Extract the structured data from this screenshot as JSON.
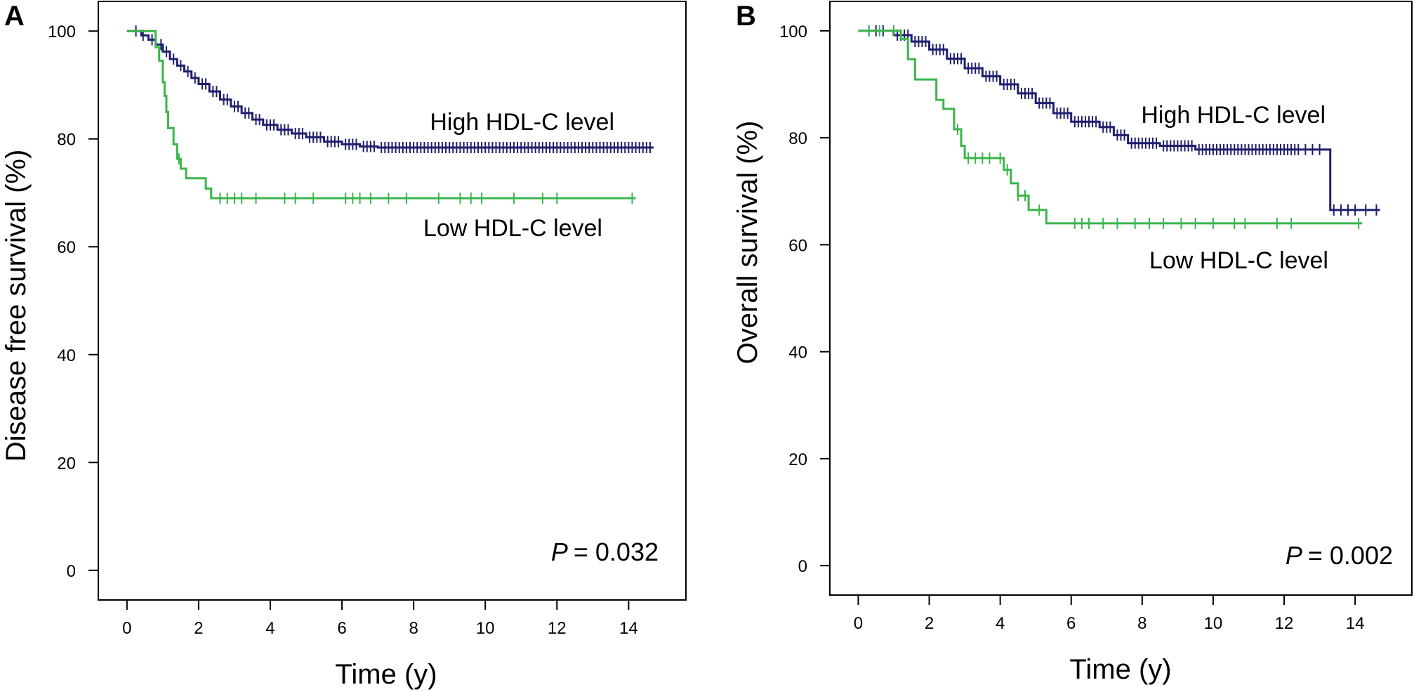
{
  "chart_data": [
    {
      "type": "line",
      "panel_label": "A",
      "xlabel": "Time (y)",
      "ylabel": "Disease free survival (%)",
      "xlim": [
        -0.8,
        15.6
      ],
      "ylim": [
        -5.5,
        105.5
      ],
      "xticks": [
        0,
        2,
        4,
        6,
        8,
        10,
        12,
        14
      ],
      "yticks": [
        0,
        20,
        40,
        60,
        80,
        100
      ],
      "p_prefix": "P",
      "p_value": "= 0.032",
      "series": [
        {
          "name": "High HDL-C level",
          "color": "#1f1f6e",
          "steps": [
            [
              0,
              100
            ],
            [
              0.4,
              99.2
            ],
            [
              0.6,
              98.4
            ],
            [
              0.8,
              97.5
            ],
            [
              1.0,
              96.2
            ],
            [
              1.2,
              94.8
            ],
            [
              1.4,
              93.6
            ],
            [
              1.6,
              92.5
            ],
            [
              1.8,
              91.3
            ],
            [
              2.0,
              90.2
            ],
            [
              2.3,
              88.8
            ],
            [
              2.6,
              87.3
            ],
            [
              2.9,
              86.0
            ],
            [
              3.2,
              84.8
            ],
            [
              3.5,
              83.6
            ],
            [
              3.8,
              82.6
            ],
            [
              4.2,
              81.7
            ],
            [
              4.6,
              81.0
            ],
            [
              5.0,
              80.3
            ],
            [
              5.5,
              79.5
            ],
            [
              6.0,
              79.0
            ],
            [
              6.5,
              78.6
            ],
            [
              7.0,
              78.4
            ]
          ],
          "end": 14.7,
          "censor": [
            0.25,
            0.45,
            0.7,
            0.95,
            1.1,
            1.3,
            1.5,
            1.7,
            1.9,
            2.1,
            2.2,
            2.4,
            2.5,
            2.7,
            2.8,
            3.0,
            3.1,
            3.3,
            3.4,
            3.6,
            3.7,
            3.9,
            4.0,
            4.1,
            4.3,
            4.4,
            4.5,
            4.7,
            4.8,
            4.9,
            5.1,
            5.2,
            5.3,
            5.4,
            5.6,
            5.7,
            5.8,
            5.9,
            6.1,
            6.2,
            6.3,
            6.4,
            6.6,
            6.7,
            6.8,
            6.9,
            7.1,
            7.2,
            7.3,
            7.4,
            7.5,
            7.6,
            7.7,
            7.8,
            7.9,
            8.0,
            8.1,
            8.2,
            8.3,
            8.4,
            8.5,
            8.6,
            8.7,
            8.8,
            8.9,
            9.0,
            9.1,
            9.2,
            9.3,
            9.4,
            9.5,
            9.6,
            9.7,
            9.8,
            9.9,
            10.0,
            10.1,
            10.2,
            10.3,
            10.4,
            10.5,
            10.6,
            10.7,
            10.8,
            10.9,
            11.0,
            11.1,
            11.2,
            11.3,
            11.4,
            11.5,
            11.6,
            11.7,
            11.8,
            11.9,
            12.0,
            12.1,
            12.2,
            12.3,
            12.4,
            12.5,
            12.6,
            12.7,
            12.8,
            12.9,
            13.0,
            13.1,
            13.2,
            13.3,
            13.4,
            13.5,
            13.6,
            13.7,
            13.8,
            13.9,
            14.0,
            14.1,
            14.2,
            14.3,
            14.4,
            14.5,
            14.6
          ]
        },
        {
          "name": "Low HDL-C level",
          "color": "#3bb54a",
          "steps": [
            [
              0,
              100
            ],
            [
              0.6,
              100
            ],
            [
              0.8,
              97.0
            ],
            [
              0.9,
              94.5
            ],
            [
              1.0,
              90.5
            ],
            [
              1.05,
              88.0
            ],
            [
              1.1,
              85.0
            ],
            [
              1.15,
              82.0
            ],
            [
              1.3,
              81.7
            ],
            [
              1.3,
              79.0
            ],
            [
              1.4,
              76.3
            ],
            [
              1.5,
              74.5
            ],
            [
              1.65,
              72.7
            ],
            [
              2.2,
              70.8
            ],
            [
              2.35,
              69.0
            ]
          ],
          "end": 14.2,
          "censor": [
            1.45,
            2.6,
            2.8,
            3.0,
            3.2,
            3.6,
            4.4,
            4.7,
            5.2,
            6.1,
            6.3,
            6.5,
            6.8,
            7.3,
            7.8,
            8.7,
            9.3,
            9.6,
            9.9,
            10.8,
            11.6,
            12.0,
            14.1
          ]
        }
      ]
    },
    {
      "type": "line",
      "panel_label": "B",
      "xlabel": "Time (y)",
      "ylabel": "Overall survival (%)",
      "xlim": [
        -0.8,
        15.6
      ],
      "ylim": [
        -5.5,
        105.5
      ],
      "xticks": [
        0,
        2,
        4,
        6,
        8,
        10,
        12,
        14
      ],
      "yticks": [
        0,
        20,
        40,
        60,
        80,
        100
      ],
      "p_prefix": "P",
      "p_value": "= 0.002",
      "series": [
        {
          "name": "High HDL-C level",
          "color": "#1f1f6e",
          "steps": [
            [
              0,
              100
            ],
            [
              1.0,
              99.2
            ],
            [
              1.5,
              98.0
            ],
            [
              2.0,
              96.5
            ],
            [
              2.5,
              94.8
            ],
            [
              3.0,
              93.0
            ],
            [
              3.5,
              91.5
            ],
            [
              4.0,
              90.0
            ],
            [
              4.5,
              88.3
            ],
            [
              5.0,
              86.5
            ],
            [
              5.5,
              84.6
            ],
            [
              6.0,
              83.0
            ],
            [
              6.8,
              82.0
            ],
            [
              7.2,
              80.5
            ],
            [
              7.6,
              79.0
            ],
            [
              8.5,
              78.5
            ],
            [
              9.5,
              77.8
            ],
            [
              13.3,
              66.5
            ]
          ],
          "end": 14.7,
          "censor": [
            0.3,
            0.5,
            0.7,
            1.1,
            1.2,
            1.3,
            1.4,
            1.6,
            1.7,
            1.8,
            1.9,
            2.1,
            2.2,
            2.3,
            2.4,
            2.6,
            2.7,
            2.8,
            2.9,
            3.1,
            3.2,
            3.3,
            3.4,
            3.6,
            3.7,
            3.8,
            3.9,
            4.1,
            4.2,
            4.3,
            4.4,
            4.6,
            4.7,
            4.8,
            4.9,
            5.1,
            5.2,
            5.3,
            5.4,
            5.6,
            5.7,
            5.8,
            5.9,
            6.1,
            6.2,
            6.3,
            6.4,
            6.5,
            6.6,
            6.7,
            6.9,
            7.0,
            7.1,
            7.3,
            7.4,
            7.5,
            7.7,
            7.8,
            7.9,
            8.0,
            8.1,
            8.2,
            8.3,
            8.4,
            8.6,
            8.7,
            8.8,
            8.9,
            9.0,
            9.1,
            9.2,
            9.3,
            9.4,
            9.6,
            9.7,
            9.8,
            9.9,
            10.0,
            10.1,
            10.2,
            10.3,
            10.4,
            10.5,
            10.6,
            10.7,
            10.8,
            10.9,
            11.0,
            11.1,
            11.2,
            11.3,
            11.4,
            11.5,
            11.6,
            11.7,
            11.8,
            11.9,
            12.0,
            12.1,
            12.2,
            12.3,
            12.4,
            12.6,
            12.8,
            13.0,
            13.4,
            13.6,
            13.8,
            14.0,
            14.3,
            14.6
          ]
        },
        {
          "name": "Low HDL-C level",
          "color": "#3bb54a",
          "steps": [
            [
              0,
              100
            ],
            [
              1.2,
              98.5
            ],
            [
              1.4,
              94.7
            ],
            [
              1.6,
              90.9
            ],
            [
              2.2,
              87.1
            ],
            [
              2.4,
              85.4
            ],
            [
              2.7,
              81.6
            ],
            [
              2.9,
              78.5
            ],
            [
              3.0,
              76.2
            ],
            [
              4.1,
              74.0
            ],
            [
              4.3,
              71.5
            ],
            [
              4.5,
              69.2
            ],
            [
              4.8,
              66.5
            ],
            [
              5.3,
              64.0
            ]
          ],
          "end": 14.2,
          "censor": [
            0.3,
            0.6,
            1.0,
            2.8,
            3.1,
            3.3,
            3.5,
            3.7,
            4.0,
            4.2,
            4.5,
            4.7,
            5.1,
            6.1,
            6.3,
            6.5,
            6.9,
            7.3,
            7.8,
            8.2,
            8.6,
            9.1,
            9.5,
            10.0,
            10.6,
            10.9,
            11.8,
            12.2,
            14.1
          ]
        }
      ]
    }
  ]
}
